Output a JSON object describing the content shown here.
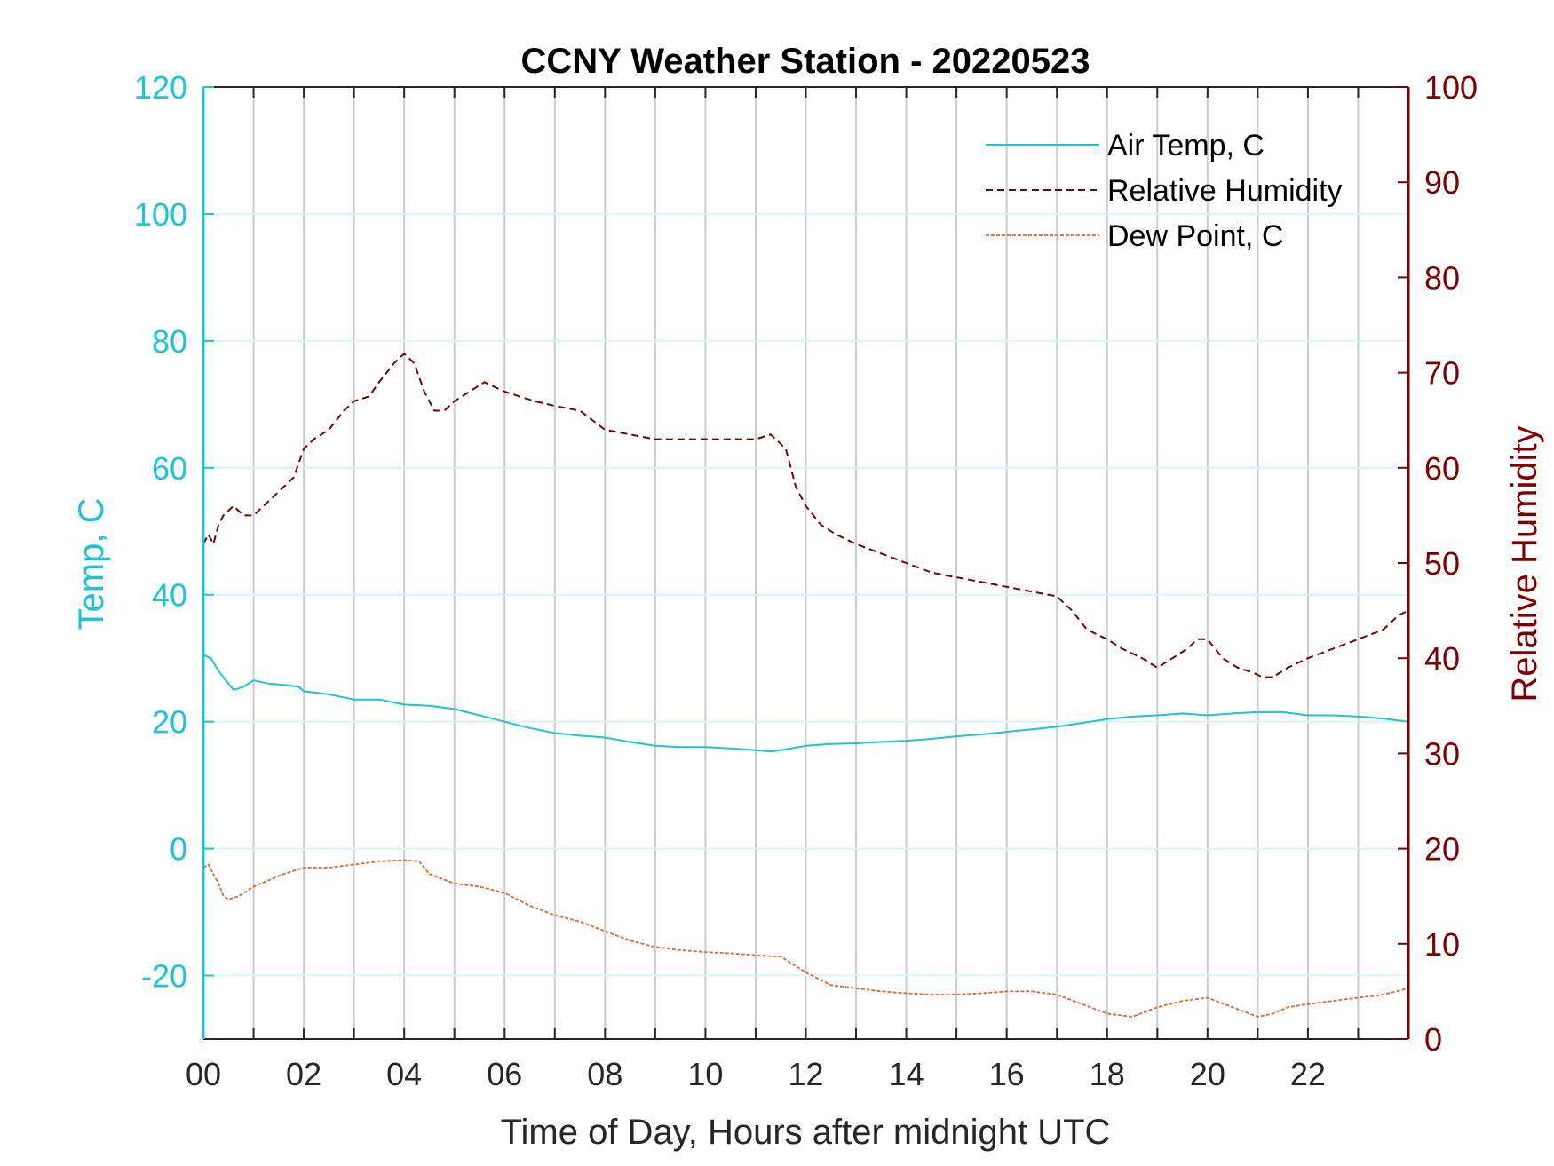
{
  "chart_data": {
    "type": "line",
    "title": "CCNY Weather Station - 20220523",
    "xlabel": "Time of Day, Hours after midnight UTC",
    "ylabel_left": "Temp, C",
    "ylabel_right": "Relative Humidity",
    "xlim": [
      0,
      24
    ],
    "ylim_left": [
      -30,
      120
    ],
    "ylim_right": [
      0,
      100
    ],
    "x_ticks": [
      0,
      2,
      4,
      6,
      8,
      10,
      12,
      14,
      16,
      18,
      20,
      22
    ],
    "x_tick_labels": [
      "00",
      "02",
      "04",
      "06",
      "08",
      "10",
      "12",
      "14",
      "16",
      "18",
      "20",
      "22"
    ],
    "y_ticks_left": [
      -20,
      0,
      20,
      40,
      60,
      80,
      100,
      120
    ],
    "y_tick_labels_left": [
      "-20",
      "0",
      "20",
      "40",
      "60",
      "80",
      "100",
      "120"
    ],
    "y_ticks_right": [
      0,
      10,
      20,
      30,
      40,
      50,
      60,
      70,
      80,
      90,
      100
    ],
    "y_tick_labels_right": [
      "0",
      "10",
      "20",
      "30",
      "40",
      "50",
      "60",
      "70",
      "80",
      "90",
      "100"
    ],
    "grid": "vertical gray every hour, horizontal light cyan at left ticks",
    "legend_position": "top-right",
    "colors": {
      "air_temp": "#1fc3d6",
      "humidity": "#800000",
      "dew_point": "#e0662a",
      "left_axis": "#1fc3d6",
      "right_axis": "#800000",
      "vgrid": "#c8cdd2",
      "hgrid": "#d9f4f8"
    },
    "series": [
      {
        "name": "Air Temp, C",
        "axis": "left",
        "style": "solid",
        "x": [
          0,
          0.15,
          0.3,
          0.45,
          0.6,
          0.8,
          1.0,
          1.3,
          1.6,
          1.9,
          2.0,
          2.5,
          3.0,
          3.5,
          4.0,
          4.5,
          5.0,
          5.5,
          6.0,
          6.5,
          7.0,
          7.5,
          8.0,
          8.5,
          9.0,
          9.5,
          10.0,
          10.5,
          11.0,
          11.3,
          11.5,
          12.0,
          12.5,
          13.0,
          13.5,
          14.0,
          14.5,
          15.0,
          15.5,
          16.0,
          16.5,
          17.0,
          17.5,
          18.0,
          18.5,
          19.0,
          19.5,
          20.0,
          20.5,
          21.0,
          21.5,
          22.0,
          22.5,
          23.0,
          23.5,
          24.0
        ],
        "values": [
          30.5,
          30.0,
          28.0,
          26.5,
          25.0,
          25.5,
          26.5,
          26.0,
          25.8,
          25.5,
          24.8,
          24.3,
          23.5,
          23.5,
          22.7,
          22.5,
          22.0,
          21.0,
          20.0,
          19.0,
          18.2,
          17.8,
          17.5,
          16.8,
          16.2,
          16.0,
          16.0,
          15.8,
          15.5,
          15.3,
          15.5,
          16.2,
          16.5,
          16.6,
          16.8,
          17.0,
          17.3,
          17.7,
          18.0,
          18.4,
          18.8,
          19.2,
          19.8,
          20.4,
          20.8,
          21.0,
          21.3,
          21.0,
          21.3,
          21.5,
          21.5,
          21.0,
          21.0,
          20.8,
          20.5,
          20.0
        ]
      },
      {
        "name": "Relative Humidity",
        "axis": "right",
        "style": "dashed",
        "x": [
          0,
          0.1,
          0.2,
          0.3,
          0.4,
          0.6,
          0.8,
          1.0,
          1.2,
          1.4,
          1.6,
          1.8,
          2.0,
          2.2,
          2.5,
          2.8,
          3.0,
          3.3,
          3.5,
          3.8,
          4.0,
          4.2,
          4.4,
          4.6,
          4.8,
          5.0,
          5.3,
          5.6,
          5.8,
          6.0,
          6.3,
          6.6,
          7.0,
          7.5,
          8.0,
          8.5,
          9.0,
          9.5,
          10.0,
          10.5,
          11.0,
          11.3,
          11.6,
          11.8,
          12.0,
          12.3,
          12.6,
          13.0,
          13.5,
          14.0,
          14.5,
          15.0,
          15.5,
          16.0,
          16.5,
          17.0,
          17.3,
          17.6,
          18.0,
          18.3,
          18.7,
          19.0,
          19.3,
          19.6,
          19.8,
          20.0,
          20.3,
          20.6,
          20.9,
          21.1,
          21.3,
          21.6,
          22.0,
          22.5,
          23.0,
          23.5,
          23.8,
          24.0
        ],
        "values": [
          52,
          53,
          52,
          54,
          55,
          56,
          55,
          55,
          56,
          57,
          58,
          59,
          62,
          63,
          64,
          66,
          67,
          67.5,
          69,
          71,
          72,
          71,
          68,
          66,
          66,
          67,
          68,
          69,
          68.5,
          68,
          67.5,
          67,
          66.5,
          66,
          64,
          63.5,
          63,
          63,
          63,
          63,
          63,
          63.5,
          62,
          58,
          56,
          54,
          53,
          52,
          51,
          50,
          49,
          48.5,
          48,
          47.5,
          47,
          46.5,
          45,
          43,
          42,
          41,
          40,
          39,
          40,
          41,
          42,
          42,
          40,
          39,
          38.5,
          38,
          38,
          39,
          40,
          41,
          42,
          43,
          44.5,
          45
        ]
      },
      {
        "name": "Dew Point, C",
        "axis": "left",
        "style": "dotted",
        "x": [
          0,
          0.1,
          0.2,
          0.3,
          0.4,
          0.5,
          0.7,
          1.0,
          1.3,
          1.6,
          2.0,
          2.5,
          3.0,
          3.5,
          4.0,
          4.3,
          4.5,
          5.0,
          5.5,
          6.0,
          6.5,
          7.0,
          7.5,
          8.0,
          8.5,
          9.0,
          9.5,
          10.0,
          10.5,
          11.0,
          11.5,
          12.0,
          12.5,
          13.0,
          13.5,
          14.0,
          14.5,
          15.0,
          15.5,
          16.0,
          16.5,
          17.0,
          17.5,
          18.0,
          18.5,
          19.0,
          19.5,
          20.0,
          20.5,
          21.0,
          21.3,
          21.6,
          22.0,
          22.5,
          23.0,
          23.5,
          24.0
        ],
        "values": [
          -3,
          -2.5,
          -4,
          -5.5,
          -7.5,
          -8,
          -7.5,
          -6,
          -5,
          -4,
          -3,
          -3,
          -2.5,
          -2,
          -1.8,
          -2,
          -4,
          -5.5,
          -6,
          -7,
          -9,
          -10.5,
          -11.5,
          -13,
          -14.5,
          -15.5,
          -16,
          -16.3,
          -16.5,
          -16.8,
          -17,
          -19.5,
          -21.5,
          -22,
          -22.5,
          -22.8,
          -23,
          -23,
          -22.8,
          -22.5,
          -22.5,
          -23,
          -24.5,
          -26,
          -26.5,
          -25,
          -24,
          -23.5,
          -25,
          -26.5,
          -26,
          -25,
          -24.5,
          -24,
          -23.5,
          -23,
          -22
        ]
      }
    ]
  }
}
